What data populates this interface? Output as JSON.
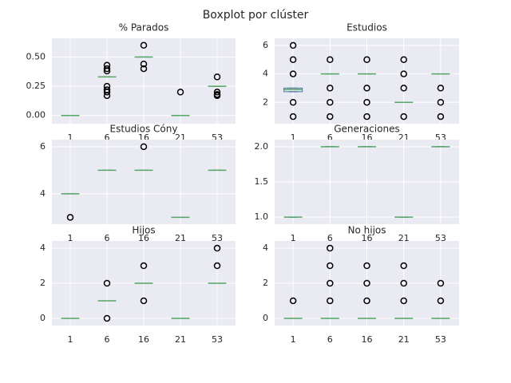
{
  "title": "Boxplot por clúster",
  "chart_data": [
    {
      "type": "box",
      "title": "% Parados",
      "categories": [
        "1",
        "6",
        "16",
        "21",
        "53"
      ],
      "boxes": [
        {
          "q1": 0,
          "median": 0,
          "q3": 0,
          "whislo": 0,
          "whishi": 0,
          "fliers": []
        },
        {
          "q1": 0.33,
          "median": 0.33,
          "q3": 0.33,
          "whislo": 0.33,
          "whishi": 0.33,
          "fliers": [
            0.43,
            0.4,
            0.38,
            0.25,
            0.22,
            0.2,
            0.17
          ]
        },
        {
          "q1": 0.5,
          "median": 0.5,
          "q3": 0.5,
          "whislo": 0.5,
          "whishi": 0.5,
          "fliers": [
            0.6,
            0.44,
            0.4
          ]
        },
        {
          "q1": 0,
          "median": 0,
          "q3": 0,
          "whislo": 0,
          "whishi": 0,
          "fliers": [
            0.2
          ]
        },
        {
          "q1": 0.25,
          "median": 0.25,
          "q3": 0.25,
          "whislo": 0.25,
          "whishi": 0.25,
          "fliers": [
            0.33,
            0.2,
            0.18,
            0.17
          ]
        }
      ],
      "ylim": [
        -0.07,
        0.66
      ],
      "yticks": [
        {
          "value": 0,
          "label": "0.00"
        },
        {
          "value": 0.25,
          "label": "0.25"
        },
        {
          "value": 0.5,
          "label": "0.50"
        }
      ],
      "grid": true,
      "box_color": "#4c72b0",
      "median_color": "#55a868",
      "flier_color": "#000000"
    },
    {
      "type": "box",
      "title": "Estudios",
      "categories": [
        "1",
        "6",
        "16",
        "21",
        "53"
      ],
      "boxes": [
        {
          "q1": 2.75,
          "median": 2.9,
          "q3": 3,
          "whislo": 2.75,
          "whishi": 3,
          "fliers": [
            1,
            2,
            4,
            5,
            6
          ]
        },
        {
          "q1": 4,
          "median": 4,
          "q3": 4,
          "whislo": 4,
          "whishi": 4,
          "fliers": [
            1,
            2,
            3,
            5
          ]
        },
        {
          "q1": 4,
          "median": 4,
          "q3": 4,
          "whislo": 4,
          "whishi": 4,
          "fliers": [
            1,
            2,
            3,
            5
          ]
        },
        {
          "q1": 2,
          "median": 2,
          "q3": 2,
          "whislo": 2,
          "whishi": 2,
          "fliers": [
            1,
            3,
            4,
            5
          ]
        },
        {
          "q1": 4,
          "median": 4,
          "q3": 4,
          "whislo": 4,
          "whishi": 4,
          "fliers": [
            1,
            2,
            3
          ]
        }
      ],
      "ylim": [
        0.5,
        6.5
      ],
      "yticks": [
        2,
        4,
        6
      ],
      "grid": true,
      "box_color": "#4c72b0",
      "median_color": "#55a868",
      "flier_color": "#000000"
    },
    {
      "type": "box",
      "title": "Estudios Cóny",
      "categories": [
        "1",
        "6",
        "16",
        "21",
        "53"
      ],
      "boxes": [
        {
          "q1": 4,
          "median": 4,
          "q3": 4,
          "whislo": 4,
          "whishi": 4,
          "fliers": [
            3
          ]
        },
        {
          "q1": 5,
          "median": 5,
          "q3": 5,
          "whislo": 5,
          "whishi": 5,
          "fliers": []
        },
        {
          "q1": 5,
          "median": 5,
          "q3": 5,
          "whislo": 5,
          "whishi": 5,
          "fliers": [
            6
          ]
        },
        {
          "q1": 3,
          "median": 3,
          "q3": 3,
          "whislo": 3,
          "whishi": 3,
          "fliers": []
        },
        {
          "q1": 5,
          "median": 5,
          "q3": 5,
          "whislo": 5,
          "whishi": 5,
          "fliers": []
        }
      ],
      "ylim": [
        2.71,
        6.3
      ],
      "yticks": [
        4,
        6
      ],
      "grid": true,
      "box_color": "#4c72b0",
      "median_color": "#55a868",
      "flier_color": "#000000"
    },
    {
      "type": "box",
      "title": "Generaciones",
      "categories": [
        "1",
        "6",
        "16",
        "21",
        "53"
      ],
      "boxes": [
        {
          "q1": 1,
          "median": 1,
          "q3": 1,
          "whislo": 1,
          "whishi": 1,
          "fliers": []
        },
        {
          "q1": 2,
          "median": 2,
          "q3": 2,
          "whislo": 2,
          "whishi": 2,
          "fliers": []
        },
        {
          "q1": 2,
          "median": 2,
          "q3": 2,
          "whislo": 2,
          "whishi": 2,
          "fliers": []
        },
        {
          "q1": 1,
          "median": 1,
          "q3": 1,
          "whislo": 1,
          "whishi": 1,
          "fliers": []
        },
        {
          "q1": 2,
          "median": 2,
          "q3": 2,
          "whislo": 2,
          "whishi": 2,
          "fliers": []
        }
      ],
      "ylim": [
        0.9,
        2.1
      ],
      "yticks": [
        {
          "value": 1,
          "label": "1.0"
        },
        {
          "value": 1.5,
          "label": "1.5"
        },
        {
          "value": 2,
          "label": "2.0"
        }
      ],
      "grid": true,
      "box_color": "#4c72b0",
      "median_color": "#55a868",
      "flier_color": "#000000"
    },
    {
      "type": "box",
      "title": "Hijos",
      "categories": [
        "1",
        "6",
        "16",
        "21",
        "53"
      ],
      "boxes": [
        {
          "q1": 0,
          "median": 0,
          "q3": 0,
          "whislo": 0,
          "whishi": 0,
          "fliers": []
        },
        {
          "q1": 1,
          "median": 1,
          "q3": 1,
          "whislo": 1,
          "whishi": 1,
          "fliers": [
            2,
            0
          ]
        },
        {
          "q1": 2,
          "median": 2,
          "q3": 2,
          "whislo": 2,
          "whishi": 2,
          "fliers": [
            3,
            1
          ]
        },
        {
          "q1": 0,
          "median": 0,
          "q3": 0,
          "whislo": 0,
          "whishi": 0,
          "fliers": []
        },
        {
          "q1": 2,
          "median": 2,
          "q3": 2,
          "whislo": 2,
          "whishi": 2,
          "fliers": [
            3,
            4
          ]
        }
      ],
      "ylim": [
        -0.41,
        4.41
      ],
      "yticks": [
        0,
        2,
        4
      ],
      "grid": true,
      "box_color": "#4c72b0",
      "median_color": "#55a868",
      "flier_color": "#000000"
    },
    {
      "type": "box",
      "title": "No hijos",
      "categories": [
        "1",
        "6",
        "16",
        "21",
        "53"
      ],
      "boxes": [
        {
          "q1": 0,
          "median": 0,
          "q3": 0,
          "whislo": 0,
          "whishi": 0,
          "fliers": [
            1
          ]
        },
        {
          "q1": 0,
          "median": 0,
          "q3": 0,
          "whislo": 0,
          "whishi": 0,
          "fliers": [
            1,
            2,
            3,
            4
          ]
        },
        {
          "q1": 0,
          "median": 0,
          "q3": 0,
          "whislo": 0,
          "whishi": 0,
          "fliers": [
            1,
            2,
            3
          ]
        },
        {
          "q1": 0,
          "median": 0,
          "q3": 0,
          "whislo": 0,
          "whishi": 0,
          "fliers": [
            1,
            2,
            3
          ]
        },
        {
          "q1": 0,
          "median": 0,
          "q3": 0,
          "whislo": 0,
          "whishi": 0,
          "fliers": [
            1,
            2
          ]
        }
      ],
      "ylim": [
        -0.41,
        4.41
      ],
      "yticks": [
        0,
        2,
        4
      ],
      "grid": true,
      "box_color": "#4c72b0",
      "median_color": "#55a868",
      "flier_color": "#000000"
    }
  ]
}
